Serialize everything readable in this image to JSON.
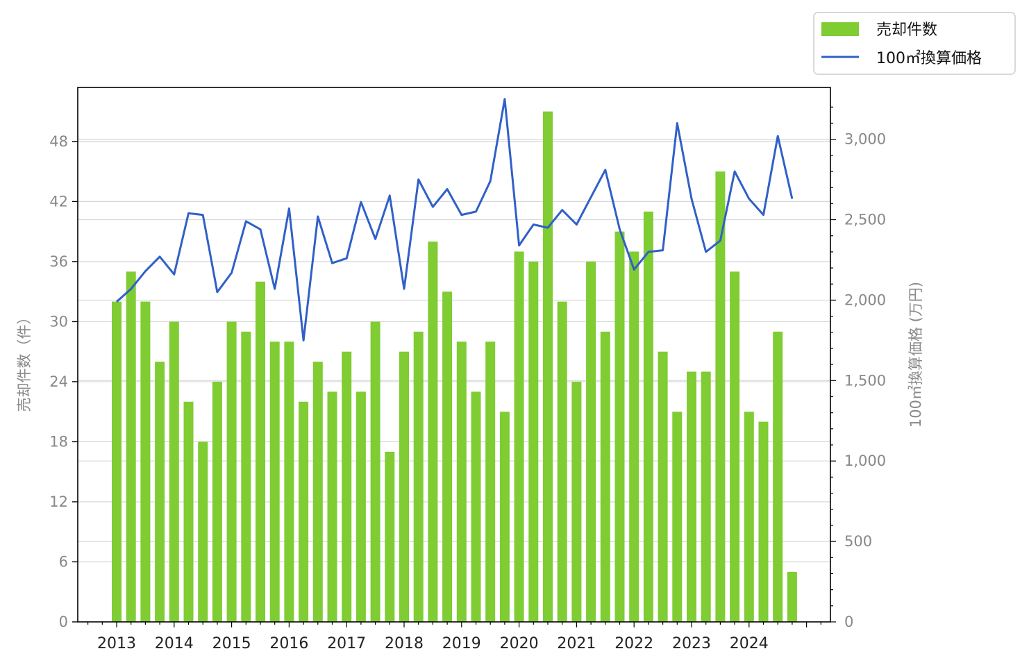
{
  "chart_data": {
    "type": "bar",
    "title": "",
    "x_tick_labels": [
      "2013",
      "2014",
      "2015",
      "2016",
      "2017",
      "2018",
      "2019",
      "2020",
      "2021",
      "2022",
      "2023",
      "2024"
    ],
    "y_left": {
      "label": "売却件数（件）",
      "ticks": [
        0,
        6,
        12,
        18,
        24,
        30,
        36,
        42,
        48
      ],
      "ylim": [
        0,
        53.4
      ]
    },
    "y_right": {
      "label": "100㎡換算価格 (万円)",
      "ticks": [
        0,
        500,
        1000,
        1500,
        2000,
        2500,
        3000
      ],
      "tick_labels": [
        "0",
        "500",
        "1,000",
        "1,500",
        "2,000",
        "2,500",
        "3,000"
      ],
      "ylim": [
        0,
        3322
      ]
    },
    "grid": "horizontal",
    "legend_placement": "top-right, outside plot",
    "series": [
      {
        "name": "売却件数",
        "kind": "bar",
        "axis": "left",
        "color": "#7fcc33",
        "quarters": [
          "2013Q1",
          "2013Q2",
          "2013Q3",
          "2013Q4",
          "2014Q1",
          "2014Q2",
          "2014Q3",
          "2014Q4",
          "2015Q1",
          "2015Q2",
          "2015Q3",
          "2015Q4",
          "2016Q1",
          "2016Q2",
          "2016Q3",
          "2016Q4",
          "2017Q1",
          "2017Q2",
          "2017Q3",
          "2017Q4",
          "2018Q1",
          "2018Q2",
          "2018Q3",
          "2018Q4",
          "2019Q1",
          "2019Q2",
          "2019Q3",
          "2019Q4",
          "2020Q1",
          "2020Q2",
          "2020Q3",
          "2020Q4",
          "2021Q1",
          "2021Q2",
          "2021Q3",
          "2021Q4",
          "2022Q1",
          "2022Q2",
          "2022Q3",
          "2022Q4",
          "2023Q1",
          "2023Q2",
          "2023Q3",
          "2023Q4",
          "2024Q1",
          "2024Q2",
          "2024Q3",
          "2024Q4"
        ],
        "values": [
          32,
          35,
          32,
          26,
          30,
          22,
          18,
          24,
          30,
          29,
          34,
          28,
          28,
          22,
          26,
          23,
          27,
          23,
          30,
          17,
          27,
          29,
          38,
          33,
          28,
          23,
          28,
          21,
          37,
          36,
          51,
          32,
          24,
          36,
          29,
          39,
          37,
          41,
          27,
          21,
          25,
          25,
          45,
          35,
          21,
          20,
          29,
          5
        ]
      },
      {
        "name": "100㎡換算価格",
        "kind": "line",
        "axis": "right",
        "color": "#3060c8",
        "values": [
          1990,
          2070,
          2180,
          2270,
          2160,
          2540,
          2530,
          2050,
          2170,
          2490,
          2440,
          2070,
          2570,
          1750,
          2520,
          2230,
          2260,
          2610,
          2380,
          2650,
          2070,
          2750,
          2580,
          2690,
          2530,
          2550,
          2740,
          3250,
          2340,
          2470,
          2450,
          2560,
          2470,
          2640,
          2810,
          2440,
          2190,
          2300,
          2310,
          3100,
          2630,
          2300,
          2370,
          2800,
          2630,
          2530,
          3020,
          2630
        ]
      }
    ]
  }
}
